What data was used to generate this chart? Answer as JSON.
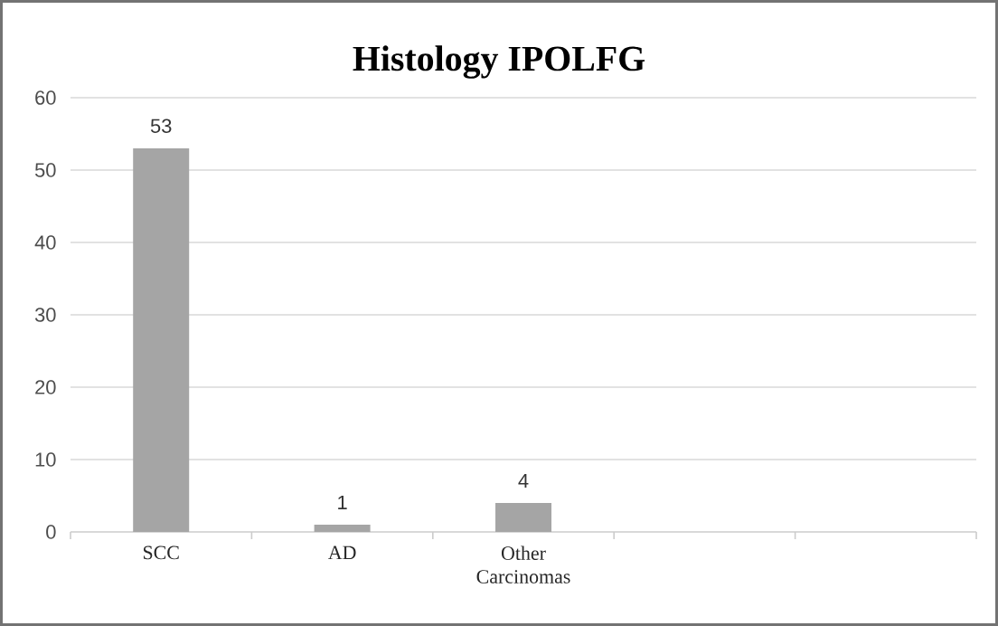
{
  "chart_data": {
    "type": "bar",
    "title": "Histology IPOLFG",
    "categories": [
      "SCC",
      "AD",
      "Other Carcinomas",
      null,
      null
    ],
    "values": [
      53,
      1,
      4,
      null,
      null
    ],
    "color": "#a5a5a5",
    "ylim": [
      0,
      60
    ],
    "yticks": [
      0,
      10,
      20,
      30,
      40,
      50,
      60
    ],
    "grid": "y",
    "data_labels": true
  }
}
